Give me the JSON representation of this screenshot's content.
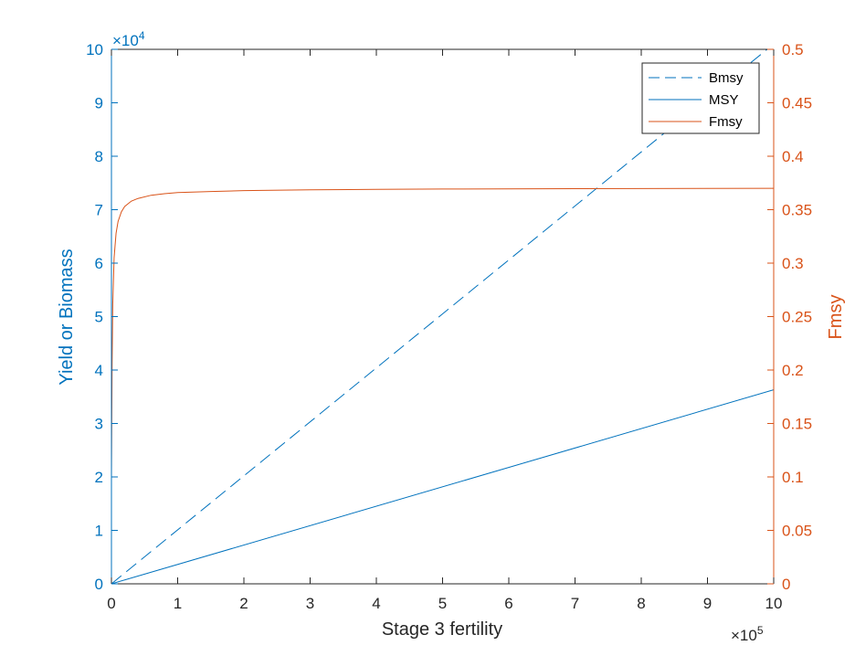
{
  "chart_data": {
    "type": "line",
    "xlabel": "Stage 3 fertility",
    "ylabel_left": "Yield or Biomass",
    "ylabel_right": "Fmsy",
    "x_multiplier_label": "×10",
    "x_multiplier_exp": "5",
    "y_multiplier_label": "×10",
    "y_multiplier_exp": "4",
    "xlim": [
      0,
      1000000
    ],
    "ylim_left": [
      0,
      100000
    ],
    "ylim_right": [
      0,
      0.5
    ],
    "x_ticks": [
      0,
      100000,
      200000,
      300000,
      400000,
      500000,
      600000,
      700000,
      800000,
      900000,
      1000000
    ],
    "x_tick_labels": [
      "0",
      "1",
      "2",
      "3",
      "4",
      "5",
      "6",
      "7",
      "8",
      "9",
      "10"
    ],
    "y_left_ticks": [
      0,
      10000,
      20000,
      30000,
      40000,
      50000,
      60000,
      70000,
      80000,
      90000,
      100000
    ],
    "y_left_tick_labels": [
      "0",
      "1",
      "2",
      "3",
      "4",
      "5",
      "6",
      "7",
      "8",
      "9",
      "10"
    ],
    "y_right_ticks": [
      0,
      0.05,
      0.1,
      0.15,
      0.2,
      0.25,
      0.3,
      0.35,
      0.4,
      0.45,
      0.5
    ],
    "y_right_tick_labels": [
      "0",
      "0.05",
      "0.1",
      "0.15",
      "0.2",
      "0.25",
      "0.3",
      "0.35",
      "0.4",
      "0.45",
      "0.5"
    ],
    "legend_position": "top-right",
    "grid": false,
    "colors": {
      "left_axis": "#0072bd",
      "right_axis": "#d95319",
      "box": "#262626"
    },
    "series": [
      {
        "name": "Bmsy",
        "axis": "left",
        "style": "dashed",
        "color": "#0072bd",
        "x": [
          0,
          1000000
        ],
        "y": [
          0,
          101000
        ]
      },
      {
        "name": "MSY",
        "axis": "left",
        "style": "solid",
        "color": "#0072bd",
        "x": [
          0,
          1000000
        ],
        "y": [
          0,
          36300
        ]
      },
      {
        "name": "Fmsy",
        "axis": "right",
        "style": "solid",
        "color": "#d95319",
        "x": [
          0,
          1000,
          2000,
          4000,
          7000,
          10000,
          15000,
          20000,
          30000,
          40000,
          60000,
          80000,
          100000,
          150000,
          200000,
          300000,
          400000,
          500000,
          700000,
          1000000
        ],
        "y": [
          0.1,
          0.205,
          0.262,
          0.305,
          0.328,
          0.339,
          0.348,
          0.353,
          0.358,
          0.3605,
          0.3635,
          0.365,
          0.366,
          0.367,
          0.3678,
          0.3686,
          0.369,
          0.3693,
          0.3697,
          0.37
        ]
      }
    ]
  }
}
